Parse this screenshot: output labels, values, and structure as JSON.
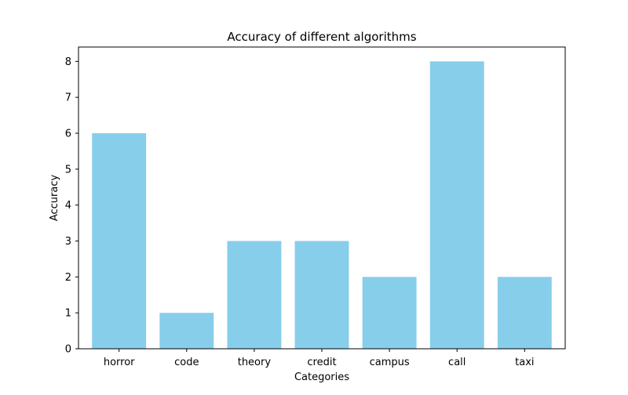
{
  "chart_data": {
    "type": "bar",
    "title": "Accuracy of different algorithms",
    "xlabel": "Categories",
    "ylabel": "Accuracy",
    "categories": [
      "horror",
      "code",
      "theory",
      "credit",
      "campus",
      "call",
      "taxi"
    ],
    "values": [
      6,
      1,
      3,
      3,
      2,
      8,
      2
    ],
    "ylim": [
      0,
      8.4
    ],
    "yticks": [
      "0",
      "1",
      "2",
      "3",
      "4",
      "5",
      "6",
      "7",
      "8"
    ],
    "bar_color": "#87CEEB",
    "grid": false,
    "legend": "none"
  }
}
